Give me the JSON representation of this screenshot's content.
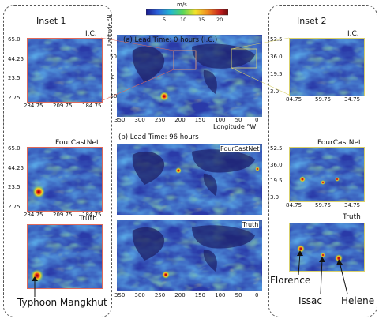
{
  "colorbar": {
    "unit": "m/s",
    "ticks": [
      "5",
      "10",
      "15",
      "20"
    ],
    "colors": [
      "#1a1a8c",
      "#2b60d9",
      "#22b8d0",
      "#5ad65a",
      "#f2e22a",
      "#f08a1e",
      "#c61e1e",
      "#6e0a0a"
    ]
  },
  "inset1": {
    "title": "Inset 1",
    "ic_label": "I.C.",
    "fcn_label": "FourCastNet",
    "truth_label": "Truth",
    "y_ticks": [
      "65.0",
      "44.25",
      "23.5",
      "2.75"
    ],
    "x_ticks": [
      "234.75",
      "209.75",
      "184.75"
    ],
    "annotation": "Typhoon Mangkhut"
  },
  "inset2": {
    "title": "Inset 2",
    "ic_label": "I.C.",
    "fcn_label": "FourCastNet",
    "truth_label": "Truth",
    "y_ticks": [
      "52.5",
      "36.0",
      "19.5",
      "3.0"
    ],
    "x_ticks": [
      "84.75",
      "59.75",
      "34.75"
    ],
    "annotations": [
      "Florence",
      "Issac",
      "Helene"
    ]
  },
  "center": {
    "panel_a_title": "(a) Lead Time: 0 hours (I.C.)",
    "panel_b_title": "(b) Lead Time: 96 hours",
    "fcn_label": "FourCastNet",
    "truth_label": "Truth",
    "ylabel": "Latitude °N",
    "xlabel": "Longitude °W",
    "lat_ticks": [
      "50",
      "0",
      "-50"
    ],
    "lon_ticks": [
      "350",
      "300",
      "250",
      "200",
      "150",
      "100",
      "50",
      "0"
    ]
  }
}
